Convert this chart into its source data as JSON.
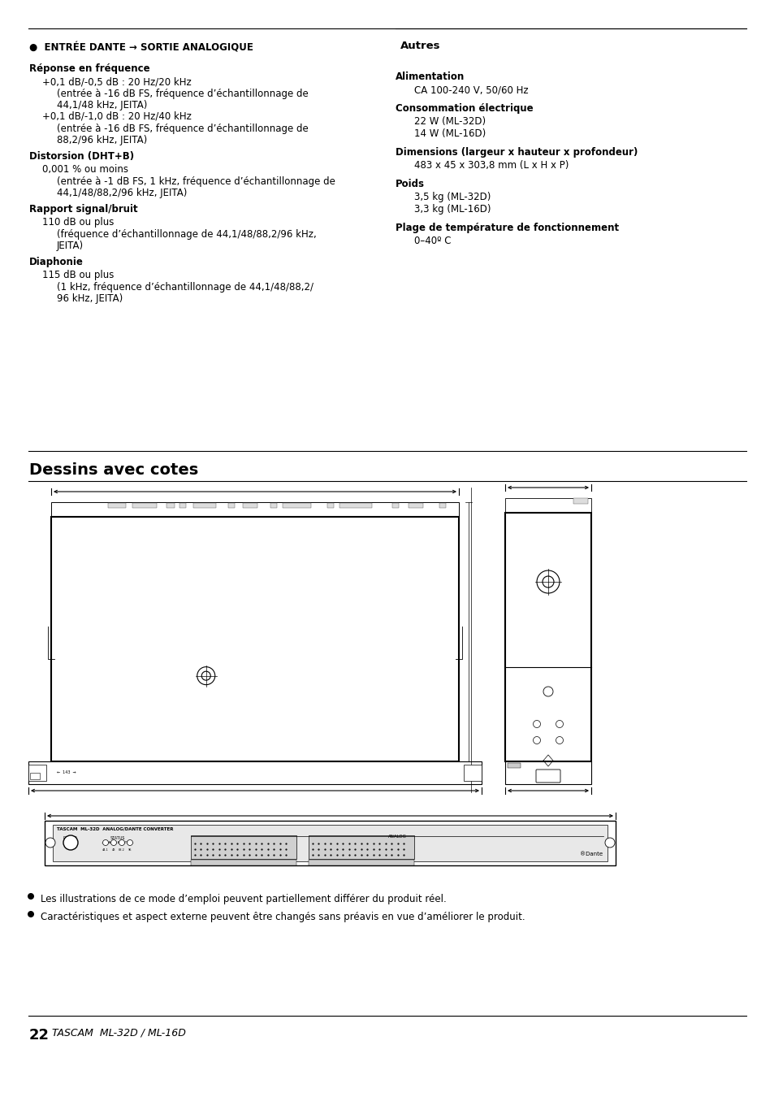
{
  "title_section1": "●  ENTRÉE DANTE → SORTIE ANALOGIQUE",
  "section1_content": [
    {
      "type": "heading",
      "text": "Réponse en fréquence"
    },
    {
      "type": "body1",
      "text": "+0,1 dB/-0,5 dB : 20 Hz/20 kHz"
    },
    {
      "type": "body2",
      "text": "(entrée à -16 dB FS, fréquence d’échantillonnage de"
    },
    {
      "type": "body2",
      "text": "44,1/48 kHz, JEITA)"
    },
    {
      "type": "body1",
      "text": "+0,1 dB/-1,0 dB : 20 Hz/40 kHz"
    },
    {
      "type": "body2",
      "text": "(entrée à -16 dB FS, fréquence d’échantillonnage de"
    },
    {
      "type": "body2",
      "text": "88,2/96 kHz, JEITA)"
    },
    {
      "type": "heading",
      "text": "Distorsion (DHT+B)"
    },
    {
      "type": "body1",
      "text": "0,001 % ou moins"
    },
    {
      "type": "body2",
      "text": "(entrée à -1 dB FS, 1 kHz, fréquence d’échantillonnage de"
    },
    {
      "type": "body2",
      "text": "44,1/48/88,2/96 kHz, JEITA)"
    },
    {
      "type": "heading",
      "text": "Rapport signal/bruit"
    },
    {
      "type": "body1",
      "text": "110 dB ou plus"
    },
    {
      "type": "body2",
      "text": "(fréquence d’échantillonnage de 44,1/48/88,2/96 kHz,"
    },
    {
      "type": "body2",
      "text": "JEITA)"
    },
    {
      "type": "heading",
      "text": "Diaphonie"
    },
    {
      "type": "body1",
      "text": "115 dB ou plus"
    },
    {
      "type": "body2",
      "text": "(1 kHz, fréquence d’échantillonnage de 44,1/48/88,2/"
    },
    {
      "type": "body2",
      "text": "96 kHz, JEITA)"
    }
  ],
  "autres_title": "Autres",
  "autres_content": [
    {
      "type": "heading",
      "text": "Alimentation"
    },
    {
      "type": "body1",
      "text": "CA 100-240 V, 50/60 Hz"
    },
    {
      "type": "heading",
      "text": "Consommation électrique"
    },
    {
      "type": "body1",
      "text": "22 W (ML-32D)"
    },
    {
      "type": "body1",
      "text": "14 W (ML-16D)"
    },
    {
      "type": "heading",
      "text": "Dimensions (largeur x hauteur x profondeur)"
    },
    {
      "type": "body1",
      "text": "483 x 45 x 303,8 mm (L x H x P)"
    },
    {
      "type": "heading",
      "text": "Poids"
    },
    {
      "type": "body1",
      "text": "3,5 kg (ML-32D)"
    },
    {
      "type": "body1",
      "text": "3,3 kg (ML-16D)"
    },
    {
      "type": "heading",
      "text": "Plage de température de fonctionnement"
    },
    {
      "type": "body1",
      "text": "0–40º C"
    }
  ],
  "dessins_title": "Dessins avec cotes",
  "footer_bullets": [
    "Les illustrations de ce mode d’emploi peuvent partiellement différer du produit réel.",
    "Caractéristiques et aspect externe peuvent être changés sans préavis en vue d’améliorer le produit."
  ],
  "bg_color": "#ffffff",
  "text_color": "#000000"
}
